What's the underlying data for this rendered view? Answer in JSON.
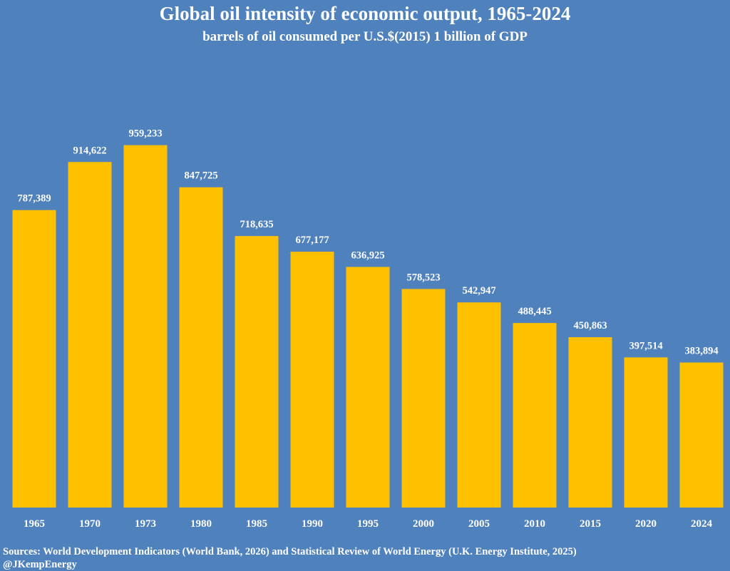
{
  "chart_data": {
    "type": "bar",
    "title": "Global oil intensity of  economic output, 1965-2024",
    "subtitle": "barrels of  oil consumed per U.S.$(2015) 1 billion of  GDP",
    "categories": [
      "1965",
      "1970",
      "1973",
      "1980",
      "1985",
      "1990",
      "1995",
      "2000",
      "2005",
      "2010",
      "2015",
      "2020",
      "2024"
    ],
    "values": [
      787389,
      914622,
      959233,
      847725,
      718635,
      677177,
      636925,
      578523,
      542947,
      488445,
      450863,
      397514,
      383894
    ],
    "labels": [
      "787,389",
      "914,622",
      "959,233",
      "847,725",
      "718,635",
      "677,177",
      "636,925",
      "578,523",
      "542,947",
      "488,445",
      "450,863",
      "397,514",
      "383,894"
    ],
    "xlabel": "",
    "ylabel": "",
    "ylim": [
      0,
      1000000
    ],
    "grid": false,
    "bar_color": "#ffc000",
    "background": "#4f81bd"
  },
  "footer": {
    "source": "Sources: World Development Indicators (World Bank, 2026) and Statistical Review of World Energy (U.K. Energy Institute, 2025)",
    "handle": "@JKempEnergy"
  }
}
